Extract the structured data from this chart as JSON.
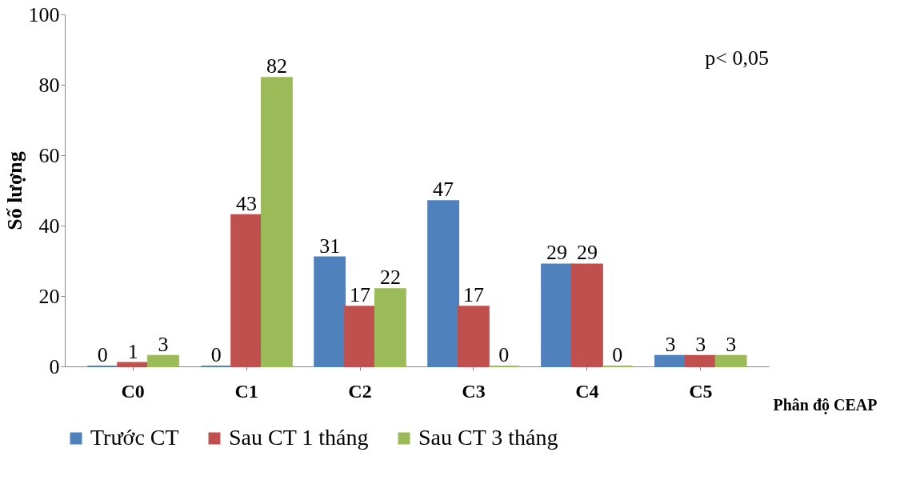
{
  "chart_data": {
    "type": "bar",
    "ylabel": "Số lượng",
    "xlabel": "Phân độ CEAP",
    "categories": [
      "C0",
      "C1",
      "C2",
      "C3",
      "C4",
      "C5"
    ],
    "series": [
      {
        "name": "Trước CT",
        "color": "#4f81bd",
        "values": [
          0,
          0,
          31,
          47,
          29,
          3
        ]
      },
      {
        "name": "Sau CT 1 tháng",
        "color": "#c0504d",
        "values": [
          1,
          43,
          17,
          17,
          29,
          3
        ]
      },
      {
        "name": "Sau CT 3 tháng",
        "color": "#9bbb59",
        "values": [
          3,
          82,
          22,
          0,
          0,
          3
        ]
      }
    ],
    "ylim": [
      0,
      100
    ],
    "yticks": [
      0,
      20,
      40,
      60,
      80,
      100
    ],
    "grid": false,
    "legend": "bottom",
    "data_labels": true,
    "annotations": [
      "p< 0,05"
    ]
  }
}
